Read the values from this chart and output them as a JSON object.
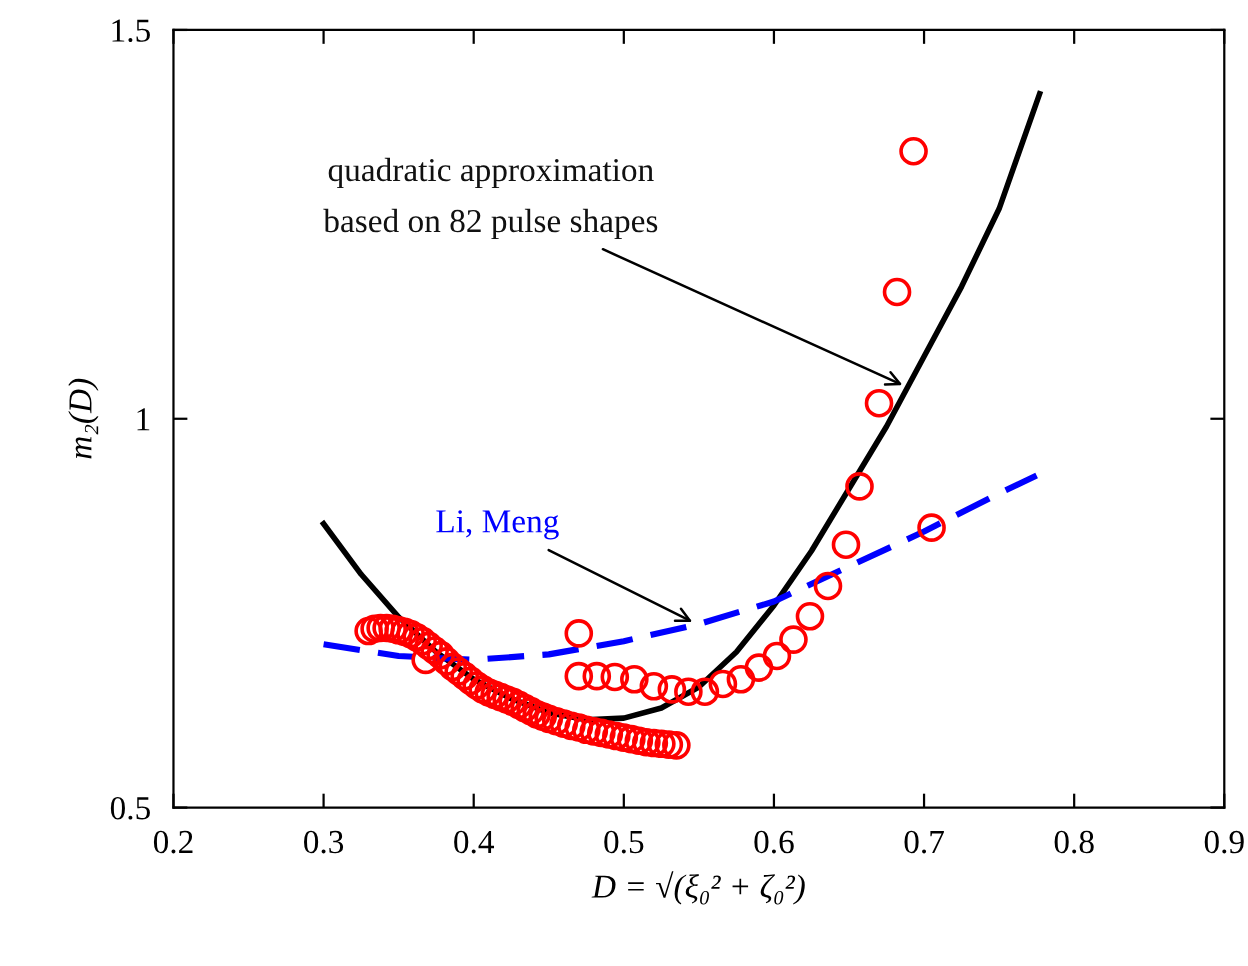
{
  "chart_data": {
    "type": "line",
    "xlabel": "D = √(ξ₀² + ζ₀²)",
    "ylabel": "m₂(D)",
    "xlim": [
      0.2,
      0.9
    ],
    "xticks": [
      0.2,
      0.3,
      0.4,
      0.5,
      0.6,
      0.7,
      0.8,
      0.9
    ],
    "ylim": [
      0.5,
      1.5
    ],
    "yticks": [
      0.5,
      1,
      1.5
    ],
    "grid": false,
    "legend": false,
    "series": [
      {
        "name": "quadratic approximation\nbased on 82 pulse shapes",
        "color": "#000000",
        "line_style": "solid",
        "marker": "none",
        "x": [
          0.3,
          0.325,
          0.35,
          0.375,
          0.4,
          0.425,
          0.45,
          0.475,
          0.5,
          0.525,
          0.55,
          0.575,
          0.6,
          0.625,
          0.65,
          0.675,
          0.7,
          0.725,
          0.75,
          0.777
        ],
        "values": [
          0.865,
          0.8,
          0.745,
          0.7,
          0.665,
          0.64,
          0.622,
          0.613,
          0.615,
          0.628,
          0.655,
          0.7,
          0.76,
          0.83,
          0.91,
          0.99,
          1.08,
          1.17,
          1.27,
          1.418
        ]
      },
      {
        "name": "Li, Meng",
        "color": "#0000ff",
        "line_style": "dashed",
        "marker": "none",
        "x": [
          0.3,
          0.35,
          0.4,
          0.45,
          0.5,
          0.55,
          0.6,
          0.65,
          0.7,
          0.75,
          0.775
        ],
        "values": [
          0.71,
          0.695,
          0.69,
          0.697,
          0.714,
          0.736,
          0.765,
          0.81,
          0.855,
          0.904,
          0.927
        ]
      },
      {
        "type": "scatter",
        "color": "#ff0000",
        "marker": "circle",
        "x": [
          0.33,
          0.334,
          0.338,
          0.342,
          0.346,
          0.35,
          0.354,
          0.358,
          0.362,
          0.366,
          0.37,
          0.374,
          0.378,
          0.368,
          0.382,
          0.386,
          0.39,
          0.394,
          0.398,
          0.402,
          0.406,
          0.41,
          0.414,
          0.418,
          0.422,
          0.426,
          0.43,
          0.434,
          0.438,
          0.442,
          0.446,
          0.45,
          0.455,
          0.46,
          0.465,
          0.47,
          0.475,
          0.48,
          0.485,
          0.49,
          0.495,
          0.5,
          0.505,
          0.51,
          0.515,
          0.52,
          0.525,
          0.53,
          0.535,
          0.47,
          0.47,
          0.482,
          0.494,
          0.507,
          0.52,
          0.532,
          0.543,
          0.554,
          0.566,
          0.578,
          0.59,
          0.602,
          0.613,
          0.624,
          0.636,
          0.648,
          0.657,
          0.67,
          0.682,
          0.693,
          0.705
        ],
        "values": [
          0.727,
          0.73,
          0.731,
          0.731,
          0.73,
          0.728,
          0.726,
          0.723,
          0.719,
          0.714,
          0.708,
          0.702,
          0.696,
          0.69,
          0.688,
          0.681,
          0.675,
          0.669,
          0.663,
          0.657,
          0.652,
          0.648,
          0.645,
          0.642,
          0.639,
          0.636,
          0.632,
          0.628,
          0.624,
          0.62,
          0.617,
          0.614,
          0.611,
          0.608,
          0.605,
          0.603,
          0.6,
          0.598,
          0.596,
          0.594,
          0.592,
          0.59,
          0.588,
          0.586,
          0.584,
          0.583,
          0.582,
          0.581,
          0.58,
          0.724,
          0.669,
          0.669,
          0.668,
          0.665,
          0.656,
          0.652,
          0.649,
          0.649,
          0.659,
          0.665,
          0.68,
          0.695,
          0.716,
          0.746,
          0.785,
          0.838,
          0.913,
          1.02,
          1.163,
          1.344,
          0.86
        ]
      }
    ]
  }
}
